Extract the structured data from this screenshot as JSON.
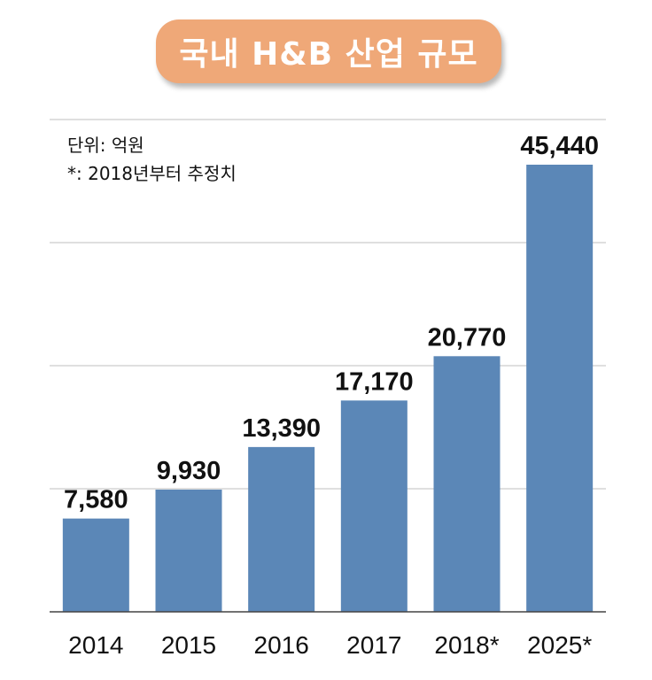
{
  "title": "국내 H&B 산업 규모",
  "notes": {
    "unit": "단위: 억원",
    "footnote": "*: 2018년부터 추정치"
  },
  "colors": {
    "bar": "#5B87B7",
    "title_bg": "#EFA878",
    "grid": "#cccccc",
    "axis": "#444444"
  },
  "chart_data": {
    "type": "bar",
    "title": "국내 H&B 산업 규모",
    "categories": [
      "2014",
      "2015",
      "2016",
      "2017",
      "2018*",
      "2025*"
    ],
    "values": [
      7580,
      9930,
      13390,
      17170,
      20770,
      45440
    ],
    "value_labels": [
      "7,580",
      "9,930",
      "13,390",
      "17,170",
      "20,770",
      "45,440"
    ],
    "xlabel": "",
    "ylabel": "",
    "ylim": [
      0,
      40000
    ],
    "grid": true,
    "legend": "none"
  }
}
